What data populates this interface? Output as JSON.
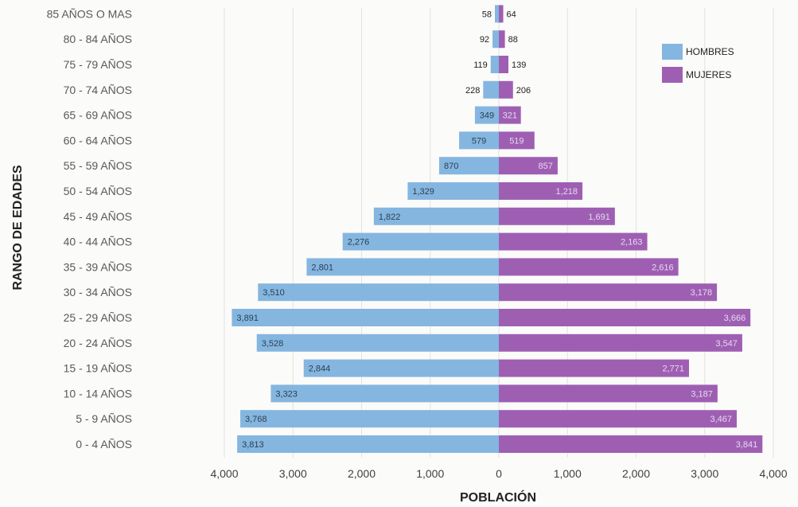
{
  "chart_data": {
    "type": "bar",
    "orientation": "horizontal-population-pyramid",
    "xlabel": "POBLACIÓN",
    "ylabel": "RANGO DE EDADES",
    "categories": [
      "0 - 4 AÑOS",
      "5 - 9 AÑOS",
      "10 - 14 AÑOS",
      "15 - 19 AÑOS",
      "20 - 24 AÑOS",
      "25 - 29 AÑOS",
      "30 - 34 AÑOS",
      "35 - 39 AÑOS",
      "40 - 44 AÑOS",
      "45 - 49 AÑOS",
      "50 - 54 AÑOS",
      "55 - 59 AÑOS",
      "60 - 64 AÑOS",
      "65 - 69 AÑOS",
      "70 - 74 AÑOS",
      "75 - 79 AÑOS",
      "80 - 84 AÑOS",
      "85 AÑOS O MAS"
    ],
    "series": [
      {
        "name": "HOMBRES",
        "color": "#85b6e0",
        "values": [
          3813,
          3768,
          3323,
          2844,
          3528,
          3891,
          3510,
          2801,
          2276,
          1822,
          1329,
          870,
          579,
          349,
          228,
          119,
          92,
          58
        ]
      },
      {
        "name": "MUJERES",
        "color": "#9e5fb3",
        "values": [
          3841,
          3467,
          3187,
          2771,
          3547,
          3666,
          3178,
          2616,
          2163,
          1691,
          1218,
          857,
          519,
          321,
          206,
          139,
          88,
          64
        ]
      }
    ],
    "data_labels": {
      "HOMBRES": [
        "3,813",
        "3,768",
        "3,323",
        "2,844",
        "3,528",
        "3,891",
        "3,510",
        "2,801",
        "2,276",
        "1,822",
        "1,329",
        "870",
        "579",
        "349",
        "228",
        "119",
        "92",
        "58"
      ],
      "MUJERES": [
        "3,841",
        "3,467",
        "3,187",
        "2,771",
        "3,547",
        "3,666",
        "3,178",
        "2,616",
        "2,163",
        "1,691",
        "1,218",
        "857",
        "519",
        "321",
        "206",
        "139",
        "88",
        "64"
      ]
    },
    "xticks": [
      "4,000",
      "3,000",
      "2,000",
      "1,000",
      "0",
      "1,000",
      "2,000",
      "3,000",
      "4,000"
    ],
    "xtick_values": [
      -4000,
      -3000,
      -2000,
      -1000,
      0,
      1000,
      2000,
      3000,
      4000
    ],
    "xlim": [
      -4000,
      4000
    ],
    "grid": "vertical",
    "legend": "top-right"
  }
}
